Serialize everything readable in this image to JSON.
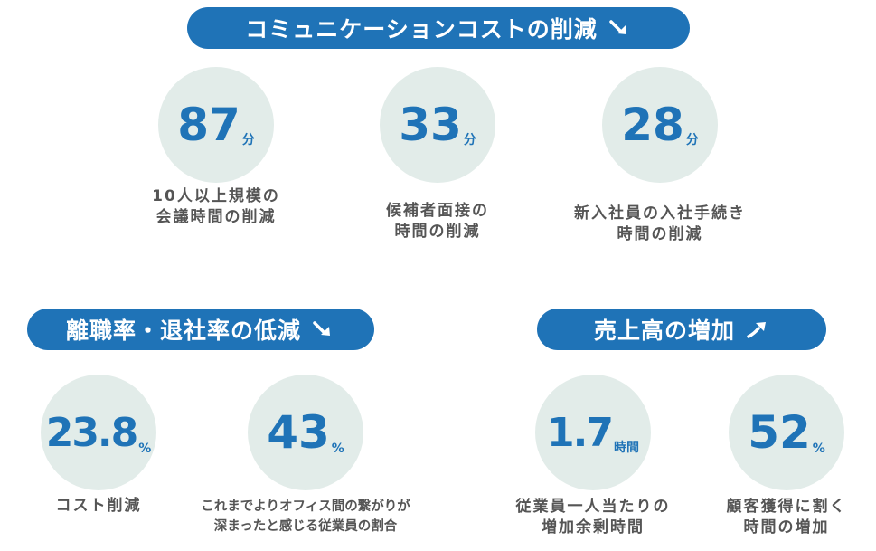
{
  "sections": {
    "communication": {
      "title": "コミュニケーションコストの削減",
      "trend": "down",
      "items": [
        {
          "value": "87",
          "unit": "分",
          "caption_line1": "10人以上規模の",
          "caption_line2": "会議時間の削減"
        },
        {
          "value": "33",
          "unit": "分",
          "caption_line1": "候補者面接の",
          "caption_line2": "時間の削減"
        },
        {
          "value": "28",
          "unit": "分",
          "caption_line1": "新入社員の入社手続き",
          "caption_line2": "時間の削減"
        }
      ]
    },
    "turnover": {
      "title": "離職率・退社率の低減",
      "trend": "down",
      "items": [
        {
          "value": "23.8",
          "unit": "%",
          "caption_line1": "コスト削減",
          "caption_line2": ""
        },
        {
          "value": "43",
          "unit": "%",
          "caption_line1": "これまでよりオフィス間の繋がりが",
          "caption_line2": "深まったと感じる従業員の割合"
        }
      ]
    },
    "sales": {
      "title": "売上高の増加",
      "trend": "up",
      "items": [
        {
          "value": "1.7",
          "unit": "時間",
          "caption_line1": "従業員一人当たりの",
          "caption_line2": "増加余剰時間"
        },
        {
          "value": "52",
          "unit": "%",
          "caption_line1": "顧客獲得に割く",
          "caption_line2": "時間の増加"
        }
      ]
    }
  },
  "colors": {
    "accent": "#1f73b7",
    "circle": "#e2ece9",
    "caption": "#555555"
  }
}
